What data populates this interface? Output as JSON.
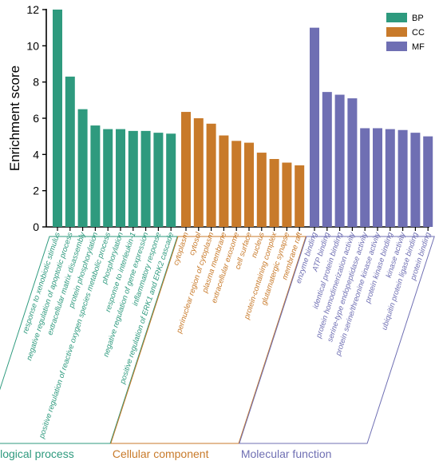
{
  "chart_data": {
    "type": "bar",
    "ylabel": "Enrichment score",
    "ylim": [
      0,
      12
    ],
    "yticks": [
      0,
      2,
      4,
      6,
      8,
      10,
      12
    ],
    "grid": false,
    "legend_position": "top-right",
    "series": [
      {
        "name": "BP",
        "group_label": "Biological process",
        "color": "#2e9a7e",
        "categories": [
          "response to xenobiotic stimulus",
          "negative regulation of apoptotic process",
          "extracellular matrix disassembly",
          "protein phosphorylation",
          "positive regulation of reactive oxygen species metabolic process",
          "phosphorylation",
          "response to interleukin-1",
          "negative regulation of gene expression",
          "inflammatory response",
          "positive regulation of ERK1 and ERK2 cascade"
        ],
        "values": [
          12.0,
          8.3,
          6.5,
          5.6,
          5.4,
          5.4,
          5.3,
          5.3,
          5.2,
          5.15
        ]
      },
      {
        "name": "CC",
        "group_label": "Cellular component",
        "color": "#c87a2a",
        "categories": [
          "cytoplasm",
          "cytosol",
          "perinuclear region of cytoplasm",
          "plasma membrane",
          "extracellular exosome",
          "cell surface",
          "nucleus",
          "protein-containing complex",
          "glutamatergic synapse",
          "membrane raft"
        ],
        "values": [
          6.35,
          6.0,
          5.7,
          5.05,
          4.75,
          4.65,
          4.1,
          3.75,
          3.55,
          3.4
        ]
      },
      {
        "name": "MF",
        "group_label": "Molecular function",
        "color": "#6f6fb3",
        "categories": [
          "enzyme binding",
          "ATP binding",
          "identical protein binding",
          "protein homodimerization activity",
          "serine-type endopeptidase activity",
          "protein serine/threonine kinase activity",
          "protein kinase binding",
          "kinase activity",
          "ubiquitin protein ligase binding",
          "protein binding"
        ],
        "values": [
          11.0,
          7.45,
          7.3,
          7.1,
          5.45,
          5.45,
          5.4,
          5.35,
          5.2,
          5.0
        ]
      }
    ]
  }
}
